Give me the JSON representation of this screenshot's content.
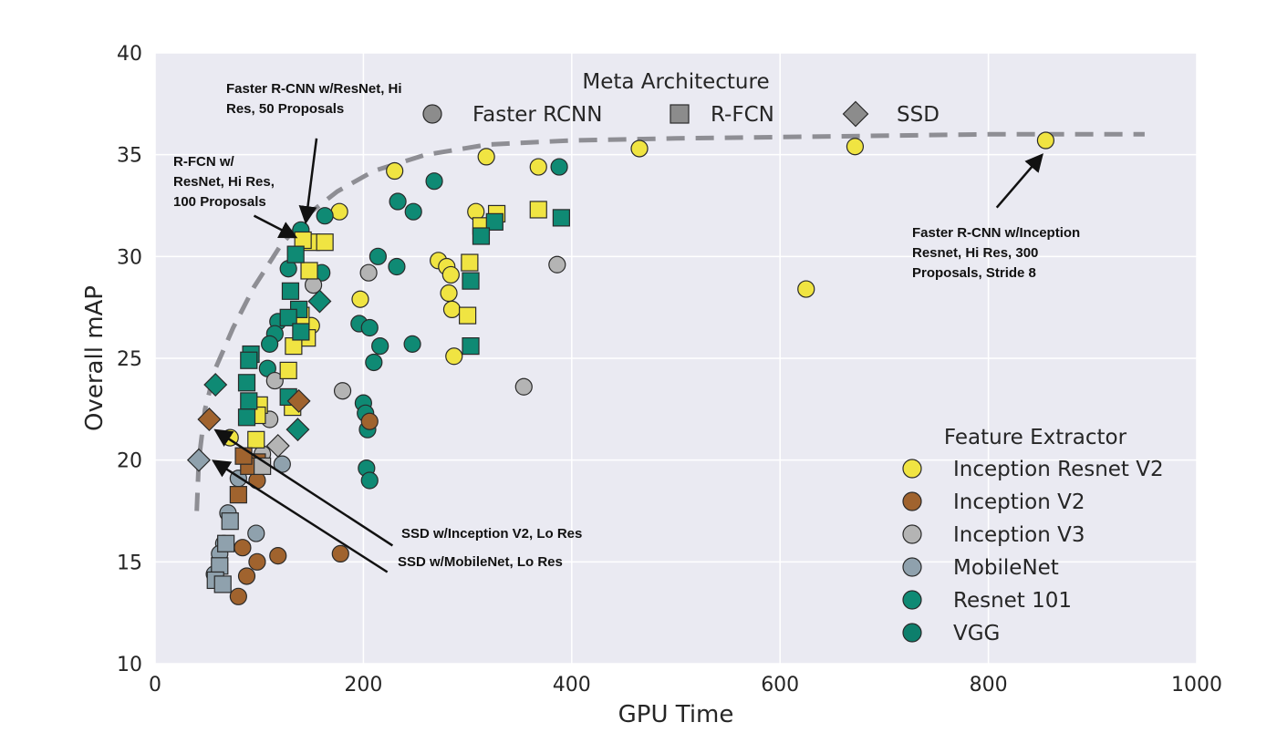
{
  "chart_data": {
    "type": "scatter",
    "xlabel": "GPU Time",
    "ylabel": "Overall mAP",
    "xlim": [
      0,
      1000
    ],
    "ylim": [
      10,
      40
    ],
    "xticks": [
      "0",
      "200",
      "400",
      "600",
      "800",
      "1000"
    ],
    "yticks": [
      "10",
      "15",
      "20",
      "25",
      "30",
      "35",
      "40"
    ],
    "grid": true,
    "background": "#eaeaf2",
    "meta_legend": {
      "title": "Meta Architecture",
      "placement": "top-center",
      "items": [
        {
          "label": "Faster RCNN",
          "shape": "circle"
        },
        {
          "label": "R-FCN",
          "shape": "square"
        },
        {
          "label": "SSD",
          "shape": "diamond"
        }
      ]
    },
    "feature_legend": {
      "title": "Feature Extractor",
      "placement": "bottom-right",
      "items": [
        {
          "label": "Inception Resnet V2",
          "color": "#f0e442"
        },
        {
          "label": "Inception V2",
          "color": "#a0632e"
        },
        {
          "label": "Inception V3",
          "color": "#b4b4b4"
        },
        {
          "label": "MobileNet",
          "color": "#8fa1ad"
        },
        {
          "label": "Resnet 101",
          "color": "#0f8a74"
        },
        {
          "label": "VGG",
          "color": "#0d7f6c"
        }
      ]
    },
    "frontier": [
      [
        40,
        17.5
      ],
      [
        42,
        20
      ],
      [
        48,
        22.5
      ],
      [
        58,
        24.5
      ],
      [
        75,
        26.5
      ],
      [
        95,
        28.5
      ],
      [
        120,
        30.5
      ],
      [
        145,
        32
      ],
      [
        175,
        33.2
      ],
      [
        210,
        34.2
      ],
      [
        260,
        35
      ],
      [
        320,
        35.5
      ],
      [
        400,
        35.7
      ],
      [
        500,
        35.8
      ],
      [
        650,
        35.9
      ],
      [
        800,
        36
      ],
      [
        950,
        36
      ]
    ],
    "points": [
      {
        "arch": "faster_rcnn",
        "fe": "Inception Resnet V2",
        "x": 855,
        "y": 35.7
      },
      {
        "arch": "faster_rcnn",
        "fe": "Inception Resnet V2",
        "x": 672,
        "y": 35.4
      },
      {
        "arch": "faster_rcnn",
        "fe": "Inception Resnet V2",
        "x": 465,
        "y": 35.3
      },
      {
        "arch": "faster_rcnn",
        "fe": "Inception Resnet V2",
        "x": 368,
        "y": 34.4
      },
      {
        "arch": "faster_rcnn",
        "fe": "Inception Resnet V2",
        "x": 318,
        "y": 34.9
      },
      {
        "arch": "faster_rcnn",
        "fe": "Inception Resnet V2",
        "x": 230,
        "y": 34.2
      },
      {
        "arch": "faster_rcnn",
        "fe": "Inception Resnet V2",
        "x": 177,
        "y": 32.2
      },
      {
        "arch": "faster_rcnn",
        "fe": "Inception Resnet V2",
        "x": 308,
        "y": 32.2
      },
      {
        "arch": "faster_rcnn",
        "fe": "Inception Resnet V2",
        "x": 625,
        "y": 28.4
      },
      {
        "arch": "faster_rcnn",
        "fe": "Inception Resnet V2",
        "x": 272,
        "y": 29.8
      },
      {
        "arch": "faster_rcnn",
        "fe": "Inception Resnet V2",
        "x": 280,
        "y": 29.5
      },
      {
        "arch": "faster_rcnn",
        "fe": "Inception Resnet V2",
        "x": 284,
        "y": 29.1
      },
      {
        "arch": "faster_rcnn",
        "fe": "Inception Resnet V2",
        "x": 282,
        "y": 28.2
      },
      {
        "arch": "faster_rcnn",
        "fe": "Inception Resnet V2",
        "x": 285,
        "y": 27.4
      },
      {
        "arch": "faster_rcnn",
        "fe": "Inception Resnet V2",
        "x": 197,
        "y": 27.9
      },
      {
        "arch": "faster_rcnn",
        "fe": "Inception Resnet V2",
        "x": 287,
        "y": 25.1
      },
      {
        "arch": "faster_rcnn",
        "fe": "Inception Resnet V2",
        "x": 150,
        "y": 26.6
      },
      {
        "arch": "faster_rcnn",
        "fe": "Inception Resnet V2",
        "x": 72,
        "y": 21.1
      },
      {
        "arch": "faster_rcnn",
        "fe": "Resnet 101",
        "x": 388,
        "y": 34.4
      },
      {
        "arch": "faster_rcnn",
        "fe": "Resnet 101",
        "x": 268,
        "y": 33.7
      },
      {
        "arch": "faster_rcnn",
        "fe": "Resnet 101",
        "x": 233,
        "y": 32.7
      },
      {
        "arch": "faster_rcnn",
        "fe": "Resnet 101",
        "x": 248,
        "y": 32.2
      },
      {
        "arch": "faster_rcnn",
        "fe": "Resnet 101",
        "x": 163,
        "y": 32
      },
      {
        "arch": "faster_rcnn",
        "fe": "Resnet 101",
        "x": 140,
        "y": 31.3
      },
      {
        "arch": "faster_rcnn",
        "fe": "Resnet 101",
        "x": 214,
        "y": 30
      },
      {
        "arch": "faster_rcnn",
        "fe": "Resnet 101",
        "x": 232,
        "y": 29.5
      },
      {
        "arch": "faster_rcnn",
        "fe": "Resnet 101",
        "x": 160,
        "y": 29.2
      },
      {
        "arch": "faster_rcnn",
        "fe": "Resnet 101",
        "x": 128,
        "y": 29.4
      },
      {
        "arch": "faster_rcnn",
        "fe": "Resnet 101",
        "x": 196,
        "y": 26.7
      },
      {
        "arch": "faster_rcnn",
        "fe": "Resnet 101",
        "x": 206,
        "y": 26.5
      },
      {
        "arch": "faster_rcnn",
        "fe": "Resnet 101",
        "x": 216,
        "y": 25.6
      },
      {
        "arch": "faster_rcnn",
        "fe": "Resnet 101",
        "x": 247,
        "y": 25.7
      },
      {
        "arch": "faster_rcnn",
        "fe": "Resnet 101",
        "x": 210,
        "y": 24.8
      },
      {
        "arch": "faster_rcnn",
        "fe": "Resnet 101",
        "x": 118,
        "y": 26.8
      },
      {
        "arch": "faster_rcnn",
        "fe": "Resnet 101",
        "x": 115,
        "y": 26.2
      },
      {
        "arch": "faster_rcnn",
        "fe": "Resnet 101",
        "x": 110,
        "y": 25.7
      },
      {
        "arch": "faster_rcnn",
        "fe": "Resnet 101",
        "x": 108,
        "y": 24.5
      },
      {
        "arch": "faster_rcnn",
        "fe": "Resnet 101",
        "x": 200,
        "y": 22.8
      },
      {
        "arch": "faster_rcnn",
        "fe": "Resnet 101",
        "x": 202,
        "y": 22.3
      },
      {
        "arch": "faster_rcnn",
        "fe": "Resnet 101",
        "x": 204,
        "y": 21.5
      },
      {
        "arch": "faster_rcnn",
        "fe": "Resnet 101",
        "x": 203,
        "y": 19.6
      },
      {
        "arch": "faster_rcnn",
        "fe": "Resnet 101",
        "x": 206,
        "y": 19
      },
      {
        "arch": "faster_rcnn",
        "fe": "Resnet 101",
        "x": 92,
        "y": 22.8
      },
      {
        "arch": "faster_rcnn",
        "fe": "Inception V2",
        "x": 206,
        "y": 21.9
      },
      {
        "arch": "faster_rcnn",
        "fe": "Inception V2",
        "x": 178,
        "y": 15.4
      },
      {
        "arch": "faster_rcnn",
        "fe": "Inception V2",
        "x": 118,
        "y": 15.3
      },
      {
        "arch": "faster_rcnn",
        "fe": "Inception V2",
        "x": 98,
        "y": 15
      },
      {
        "arch": "faster_rcnn",
        "fe": "Inception V2",
        "x": 88,
        "y": 14.3
      },
      {
        "arch": "faster_rcnn",
        "fe": "Inception V2",
        "x": 80,
        "y": 13.3
      },
      {
        "arch": "faster_rcnn",
        "fe": "Inception V2",
        "x": 98,
        "y": 19
      },
      {
        "arch": "faster_rcnn",
        "fe": "Inception V2",
        "x": 84,
        "y": 15.7
      },
      {
        "arch": "faster_rcnn",
        "fe": "Inception V3",
        "x": 386,
        "y": 29.6
      },
      {
        "arch": "faster_rcnn",
        "fe": "Inception V3",
        "x": 205,
        "y": 29.2
      },
      {
        "arch": "faster_rcnn",
        "fe": "Inception V3",
        "x": 354,
        "y": 23.6
      },
      {
        "arch": "faster_rcnn",
        "fe": "Inception V3",
        "x": 180,
        "y": 23.4
      },
      {
        "arch": "faster_rcnn",
        "fe": "Inception V3",
        "x": 115,
        "y": 23.9
      },
      {
        "arch": "faster_rcnn",
        "fe": "Inception V3",
        "x": 110,
        "y": 22
      },
      {
        "arch": "faster_rcnn",
        "fe": "Inception V3",
        "x": 152,
        "y": 28.6
      },
      {
        "arch": "faster_rcnn",
        "fe": "Inception V3",
        "x": 103,
        "y": 20.3
      },
      {
        "arch": "faster_rcnn",
        "fe": "MobileNet",
        "x": 122,
        "y": 19.8
      },
      {
        "arch": "faster_rcnn",
        "fe": "MobileNet",
        "x": 97,
        "y": 16.4
      },
      {
        "arch": "faster_rcnn",
        "fe": "MobileNet",
        "x": 70,
        "y": 17.4
      },
      {
        "arch": "faster_rcnn",
        "fe": "MobileNet",
        "x": 66,
        "y": 15.9
      },
      {
        "arch": "faster_rcnn",
        "fe": "MobileNet",
        "x": 62,
        "y": 15.4
      },
      {
        "arch": "faster_rcnn",
        "fe": "MobileNet",
        "x": 57,
        "y": 14.4
      },
      {
        "arch": "faster_rcnn",
        "fe": "MobileNet",
        "x": 80,
        "y": 19.1
      },
      {
        "arch": "rfcn",
        "fe": "Inception Resnet V2",
        "x": 368,
        "y": 32.3
      },
      {
        "arch": "rfcn",
        "fe": "Inception Resnet V2",
        "x": 328,
        "y": 32.1
      },
      {
        "arch": "rfcn",
        "fe": "Inception Resnet V2",
        "x": 313,
        "y": 31.5
      },
      {
        "arch": "rfcn",
        "fe": "Inception Resnet V2",
        "x": 302,
        "y": 29.7
      },
      {
        "arch": "rfcn",
        "fe": "Inception Resnet V2",
        "x": 300,
        "y": 27.1
      },
      {
        "arch": "rfcn",
        "fe": "Inception Resnet V2",
        "x": 150,
        "y": 30.7
      },
      {
        "arch": "rfcn",
        "fe": "Inception Resnet V2",
        "x": 163,
        "y": 30.7
      },
      {
        "arch": "rfcn",
        "fe": "Inception Resnet V2",
        "x": 142,
        "y": 30.8
      },
      {
        "arch": "rfcn",
        "fe": "Inception Resnet V2",
        "x": 148,
        "y": 29.3
      },
      {
        "arch": "rfcn",
        "fe": "Inception Resnet V2",
        "x": 140,
        "y": 27.1
      },
      {
        "arch": "rfcn",
        "fe": "Inception Resnet V2",
        "x": 146,
        "y": 26
      },
      {
        "arch": "rfcn",
        "fe": "Inception Resnet V2",
        "x": 133,
        "y": 25.6
      },
      {
        "arch": "rfcn",
        "fe": "Inception Resnet V2",
        "x": 128,
        "y": 24.4
      },
      {
        "arch": "rfcn",
        "fe": "Inception Resnet V2",
        "x": 132,
        "y": 22.6
      },
      {
        "arch": "rfcn",
        "fe": "Inception Resnet V2",
        "x": 100,
        "y": 22.7
      },
      {
        "arch": "rfcn",
        "fe": "Inception Resnet V2",
        "x": 98,
        "y": 22.2
      },
      {
        "arch": "rfcn",
        "fe": "Inception Resnet V2",
        "x": 97,
        "y": 21
      },
      {
        "arch": "rfcn",
        "fe": "Resnet 101",
        "x": 390,
        "y": 31.9
      },
      {
        "arch": "rfcn",
        "fe": "Resnet 101",
        "x": 326,
        "y": 31.7
      },
      {
        "arch": "rfcn",
        "fe": "Resnet 101",
        "x": 313,
        "y": 31
      },
      {
        "arch": "rfcn",
        "fe": "Resnet 101",
        "x": 303,
        "y": 28.8
      },
      {
        "arch": "rfcn",
        "fe": "Resnet 101",
        "x": 303,
        "y": 25.6
      },
      {
        "arch": "rfcn",
        "fe": "Resnet 101",
        "x": 135,
        "y": 30.1
      },
      {
        "arch": "rfcn",
        "fe": "Resnet 101",
        "x": 130,
        "y": 28.3
      },
      {
        "arch": "rfcn",
        "fe": "Resnet 101",
        "x": 138,
        "y": 27.4
      },
      {
        "arch": "rfcn",
        "fe": "Resnet 101",
        "x": 128,
        "y": 27
      },
      {
        "arch": "rfcn",
        "fe": "Resnet 101",
        "x": 140,
        "y": 26.3
      },
      {
        "arch": "rfcn",
        "fe": "Resnet 101",
        "x": 92,
        "y": 25.2
      },
      {
        "arch": "rfcn",
        "fe": "Resnet 101",
        "x": 90,
        "y": 24.9
      },
      {
        "arch": "rfcn",
        "fe": "Resnet 101",
        "x": 88,
        "y": 23.8
      },
      {
        "arch": "rfcn",
        "fe": "Resnet 101",
        "x": 90,
        "y": 22.9
      },
      {
        "arch": "rfcn",
        "fe": "Resnet 101",
        "x": 88,
        "y": 22.1
      },
      {
        "arch": "rfcn",
        "fe": "Resnet 101",
        "x": 128,
        "y": 23.1
      },
      {
        "arch": "rfcn",
        "fe": "Inception V2",
        "x": 98,
        "y": 19.9
      },
      {
        "arch": "rfcn",
        "fe": "Inception V2",
        "x": 90,
        "y": 19.7
      },
      {
        "arch": "rfcn",
        "fe": "Inception V2",
        "x": 85,
        "y": 20.2
      },
      {
        "arch": "rfcn",
        "fe": "Inception V2",
        "x": 80,
        "y": 18.3
      },
      {
        "arch": "rfcn",
        "fe": "Inception V3",
        "x": 103,
        "y": 19.7
      },
      {
        "arch": "rfcn",
        "fe": "MobileNet",
        "x": 72,
        "y": 17
      },
      {
        "arch": "rfcn",
        "fe": "MobileNet",
        "x": 68,
        "y": 15.9
      },
      {
        "arch": "rfcn",
        "fe": "MobileNet",
        "x": 62,
        "y": 14.8
      },
      {
        "arch": "rfcn",
        "fe": "MobileNet",
        "x": 58,
        "y": 14.1
      },
      {
        "arch": "rfcn",
        "fe": "MobileNet",
        "x": 65,
        "y": 13.9
      },
      {
        "arch": "ssd",
        "fe": "Resnet 101",
        "x": 58,
        "y": 23.7
      },
      {
        "arch": "ssd",
        "fe": "Resnet 101",
        "x": 158,
        "y": 27.8
      },
      {
        "arch": "ssd",
        "fe": "Resnet 101",
        "x": 137,
        "y": 21.5
      },
      {
        "arch": "ssd",
        "fe": "Inception V2",
        "x": 52,
        "y": 22
      },
      {
        "arch": "ssd",
        "fe": "Inception V2",
        "x": 138,
        "y": 22.9
      },
      {
        "arch": "ssd",
        "fe": "Inception V3",
        "x": 118,
        "y": 20.7
      },
      {
        "arch": "ssd",
        "fe": "MobileNet",
        "x": 42,
        "y": 20
      }
    ],
    "annotations": [
      {
        "lines": [
          "Faster R-CNN w/ResNet, Hi",
          "Res, 50 Proposals"
        ],
        "target": [
          145,
          31.8
        ],
        "tail": [
          155,
          35.8
        ]
      },
      {
        "lines": [
          "R-FCN w/",
          "ResNet, Hi Res,",
          "100 Proposals"
        ],
        "target": [
          133,
          31.0
        ],
        "tail": [
          95,
          32.0
        ]
      },
      {
        "lines": [
          "Faster R-CNN w/Inception",
          "Resnet, Hi Res, 300",
          "Proposals, Stride 8"
        ],
        "target": [
          850,
          34.9
        ],
        "tail": [
          808,
          32.4
        ]
      },
      {
        "lines": [
          "SSD w/Inception V2, Lo Res"
        ],
        "target": [
          60,
          21.4
        ],
        "tail": [
          228,
          15.8
        ]
      },
      {
        "lines": [
          "SSD w/MobileNet, Lo Res"
        ],
        "target": [
          58,
          19.9
        ],
        "tail": [
          223,
          14.5
        ]
      }
    ]
  }
}
